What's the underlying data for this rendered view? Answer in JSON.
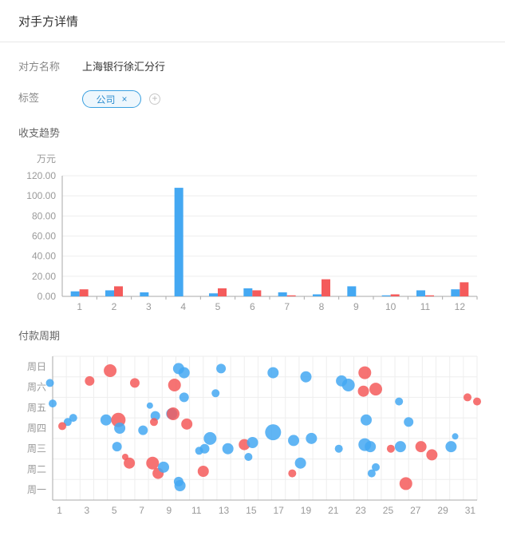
{
  "header": {
    "title": "对手方详情"
  },
  "counterparty": {
    "label": "对方名称",
    "value": "上海银行徐汇分行"
  },
  "tags": {
    "label": "标签",
    "items": [
      "公司"
    ],
    "close_glyph": "×",
    "add_glyph": "+"
  },
  "trend": {
    "title": "收支趋势"
  },
  "cycle": {
    "title": "付款周期"
  },
  "colors": {
    "blue": "#44a8f2",
    "red": "#f45b5b",
    "grid": "#eeeeee",
    "axis": "#aaaaaa"
  },
  "chart_data": [
    {
      "type": "bar",
      "ylabel": "万元",
      "categories": [
        "1",
        "2",
        "3",
        "4",
        "5",
        "6",
        "7",
        "8",
        "9",
        "10",
        "11",
        "12"
      ],
      "ylim": [
        0,
        120
      ],
      "yticks": [
        "0.00",
        "20.00",
        "40.00",
        "60.00",
        "80.00",
        "100.00",
        "120.00"
      ],
      "series": [
        {
          "color": "blue",
          "values": [
            5,
            6,
            4,
            108,
            3,
            8,
            4,
            2,
            10,
            1,
            6,
            7
          ]
        },
        {
          "color": "red",
          "values": [
            7,
            10,
            0,
            0,
            8,
            6,
            1,
            17,
            0,
            2,
            1,
            14
          ]
        }
      ]
    },
    {
      "type": "scatter",
      "xticks": [
        "1",
        "3",
        "5",
        "7",
        "9",
        "11",
        "13",
        "15",
        "17",
        "19",
        "21",
        "23",
        "25",
        "27",
        "29",
        "31"
      ],
      "yticks": [
        "周一",
        "周二",
        "周三",
        "周四",
        "周五",
        "周六",
        "周日"
      ],
      "xlim": [
        0.5,
        31.5
      ],
      "points": [
        {
          "x": 0.3,
          "y": 5.8,
          "r": 5,
          "s": 0
        },
        {
          "x": 0.5,
          "y": 4.8,
          "r": 5,
          "s": 0
        },
        {
          "x": 1.6,
          "y": 3.9,
          "r": 5,
          "s": 0
        },
        {
          "x": 2.0,
          "y": 4.1,
          "r": 5,
          "s": 0
        },
        {
          "x": 1.2,
          "y": 3.7,
          "r": 5,
          "s": 1
        },
        {
          "x": 3.2,
          "y": 5.9,
          "r": 6,
          "s": 1
        },
        {
          "x": 4.4,
          "y": 4.0,
          "r": 7,
          "s": 0
        },
        {
          "x": 4.7,
          "y": 6.4,
          "r": 8,
          "s": 1
        },
        {
          "x": 5.2,
          "y": 2.7,
          "r": 6,
          "s": 0
        },
        {
          "x": 5.3,
          "y": 4.0,
          "r": 9,
          "s": 1
        },
        {
          "x": 5.4,
          "y": 3.6,
          "r": 7,
          "s": 0
        },
        {
          "x": 5.8,
          "y": 2.2,
          "r": 4,
          "s": 1
        },
        {
          "x": 6.1,
          "y": 1.9,
          "r": 7,
          "s": 1
        },
        {
          "x": 6.5,
          "y": 5.8,
          "r": 6,
          "s": 1
        },
        {
          "x": 7.1,
          "y": 3.5,
          "r": 6,
          "s": 0
        },
        {
          "x": 7.6,
          "y": 4.7,
          "r": 4,
          "s": 0
        },
        {
          "x": 8.0,
          "y": 4.2,
          "r": 6,
          "s": 0
        },
        {
          "x": 7.9,
          "y": 3.9,
          "r": 5,
          "s": 1
        },
        {
          "x": 7.8,
          "y": 1.9,
          "r": 8,
          "s": 1
        },
        {
          "x": 8.2,
          "y": 1.4,
          "r": 7,
          "s": 1
        },
        {
          "x": 8.6,
          "y": 1.7,
          "r": 7,
          "s": 0
        },
        {
          "x": 9.2,
          "y": 4.3,
          "r": 7,
          "s": 0
        },
        {
          "x": 9.3,
          "y": 4.3,
          "r": 8,
          "s": 1
        },
        {
          "x": 9.4,
          "y": 5.7,
          "r": 8,
          "s": 1
        },
        {
          "x": 9.7,
          "y": 6.5,
          "r": 7,
          "s": 0
        },
        {
          "x": 10.1,
          "y": 6.3,
          "r": 7,
          "s": 0
        },
        {
          "x": 10.1,
          "y": 5.1,
          "r": 6,
          "s": 0
        },
        {
          "x": 10.3,
          "y": 3.8,
          "r": 7,
          "s": 1
        },
        {
          "x": 9.7,
          "y": 1.0,
          "r": 6,
          "s": 0
        },
        {
          "x": 9.8,
          "y": 0.8,
          "r": 7,
          "s": 0
        },
        {
          "x": 11.2,
          "y": 2.5,
          "r": 5,
          "s": 0
        },
        {
          "x": 11.6,
          "y": 2.6,
          "r": 6,
          "s": 0
        },
        {
          "x": 11.5,
          "y": 1.5,
          "r": 7,
          "s": 1
        },
        {
          "x": 12.0,
          "y": 3.1,
          "r": 8,
          "s": 0
        },
        {
          "x": 12.4,
          "y": 5.3,
          "r": 5,
          "s": 0
        },
        {
          "x": 12.8,
          "y": 6.5,
          "r": 6,
          "s": 0
        },
        {
          "x": 13.3,
          "y": 2.6,
          "r": 7,
          "s": 0
        },
        {
          "x": 14.5,
          "y": 2.8,
          "r": 7,
          "s": 1
        },
        {
          "x": 14.8,
          "y": 2.2,
          "r": 5,
          "s": 0
        },
        {
          "x": 15.1,
          "y": 2.9,
          "r": 7,
          "s": 0
        },
        {
          "x": 16.6,
          "y": 3.4,
          "r": 10,
          "s": 0
        },
        {
          "x": 16.6,
          "y": 6.3,
          "r": 7,
          "s": 0
        },
        {
          "x": 18.0,
          "y": 1.4,
          "r": 5,
          "s": 1
        },
        {
          "x": 18.1,
          "y": 3.0,
          "r": 7,
          "s": 0
        },
        {
          "x": 18.6,
          "y": 1.9,
          "r": 7,
          "s": 0
        },
        {
          "x": 19.0,
          "y": 6.1,
          "r": 7,
          "s": 0
        },
        {
          "x": 19.4,
          "y": 3.1,
          "r": 7,
          "s": 0
        },
        {
          "x": 21.4,
          "y": 2.6,
          "r": 5,
          "s": 0
        },
        {
          "x": 21.6,
          "y": 5.9,
          "r": 7,
          "s": 0
        },
        {
          "x": 22.1,
          "y": 5.7,
          "r": 8,
          "s": 0
        },
        {
          "x": 23.3,
          "y": 6.3,
          "r": 8,
          "s": 1
        },
        {
          "x": 23.2,
          "y": 5.4,
          "r": 7,
          "s": 1
        },
        {
          "x": 23.3,
          "y": 2.8,
          "r": 8,
          "s": 0
        },
        {
          "x": 23.4,
          "y": 4.0,
          "r": 7,
          "s": 0
        },
        {
          "x": 23.7,
          "y": 2.7,
          "r": 7,
          "s": 0
        },
        {
          "x": 24.1,
          "y": 5.5,
          "r": 8,
          "s": 1
        },
        {
          "x": 23.8,
          "y": 1.4,
          "r": 5,
          "s": 0
        },
        {
          "x": 24.1,
          "y": 1.7,
          "r": 5,
          "s": 0
        },
        {
          "x": 25.2,
          "y": 2.6,
          "r": 5,
          "s": 1
        },
        {
          "x": 25.9,
          "y": 2.7,
          "r": 7,
          "s": 0
        },
        {
          "x": 25.8,
          "y": 4.9,
          "r": 5,
          "s": 0
        },
        {
          "x": 26.3,
          "y": 0.9,
          "r": 8,
          "s": 1
        },
        {
          "x": 26.5,
          "y": 3.9,
          "r": 6,
          "s": 0
        },
        {
          "x": 27.4,
          "y": 2.7,
          "r": 7,
          "s": 1
        },
        {
          "x": 28.2,
          "y": 2.3,
          "r": 7,
          "s": 1
        },
        {
          "x": 29.6,
          "y": 2.7,
          "r": 7,
          "s": 0
        },
        {
          "x": 29.9,
          "y": 3.2,
          "r": 4,
          "s": 0
        },
        {
          "x": 30.8,
          "y": 5.1,
          "r": 5,
          "s": 1
        },
        {
          "x": 31.5,
          "y": 4.9,
          "r": 5,
          "s": 1
        }
      ]
    }
  ]
}
